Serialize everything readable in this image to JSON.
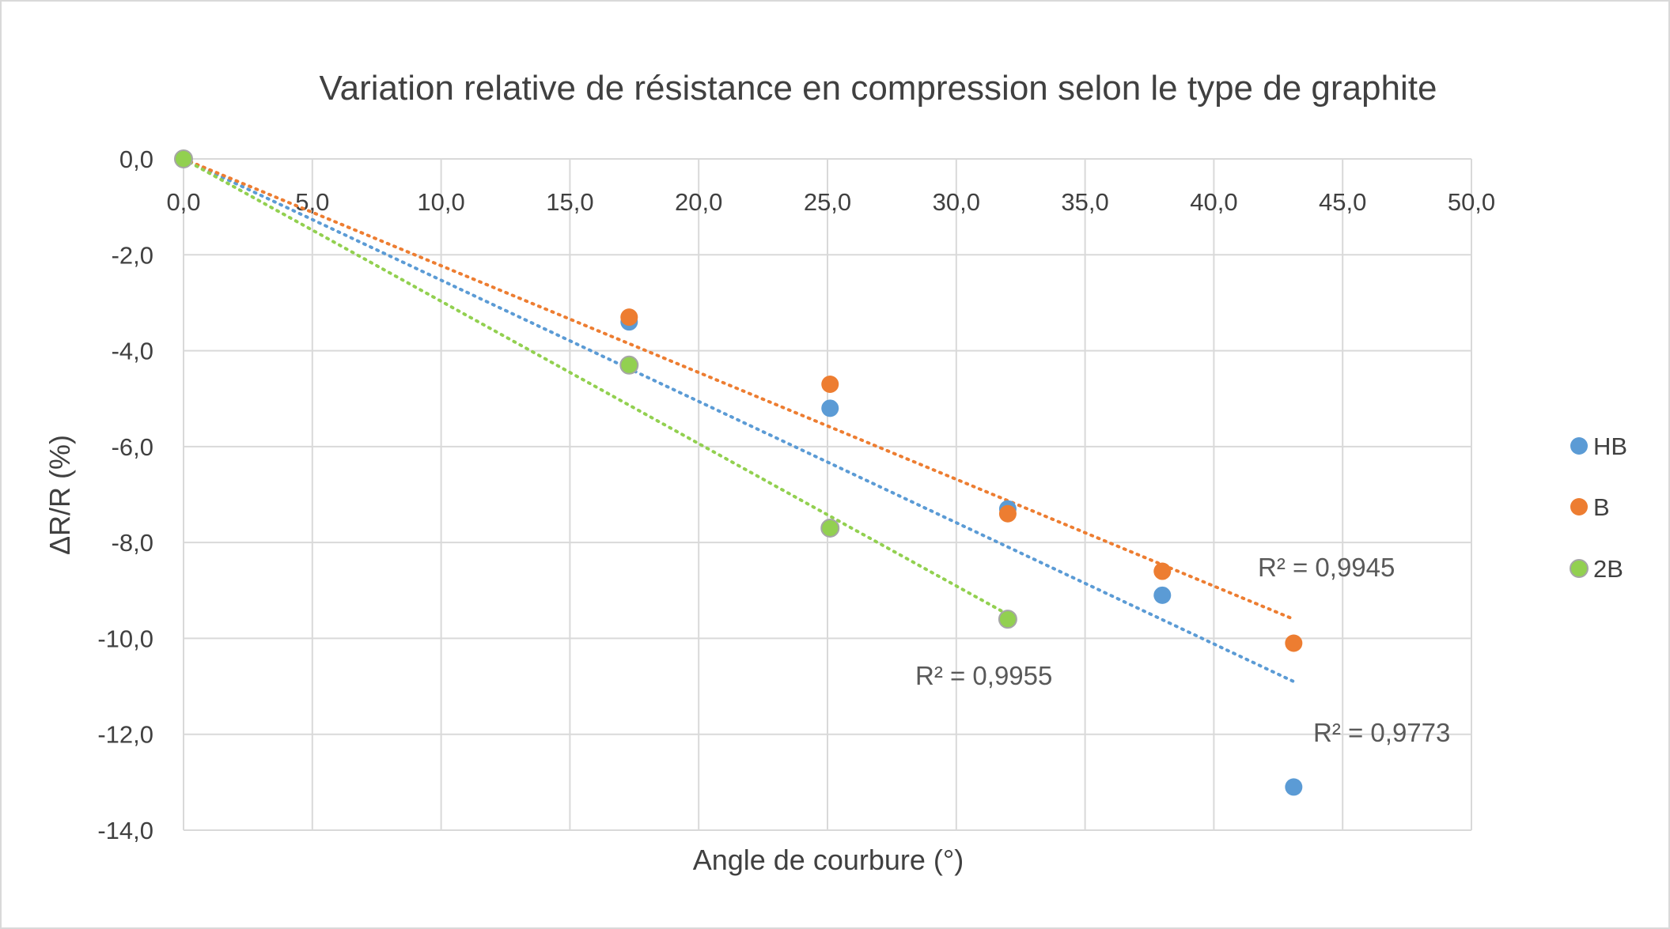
{
  "chart_data": {
    "type": "scatter",
    "title": "Variation relative de résistance en compression selon le type de graphite",
    "xlabel": "Angle de courbure (°)",
    "ylabel": "ΔR/R (%)",
    "xlim": [
      0,
      50
    ],
    "ylim": [
      -14,
      0
    ],
    "x_ticks": [
      "0,0",
      "5,0",
      "10,0",
      "15,0",
      "20,0",
      "25,0",
      "30,0",
      "35,0",
      "40,0",
      "45,0",
      "50,0"
    ],
    "y_ticks": [
      "0,0",
      "-2,0",
      "-4,0",
      "-6,0",
      "-8,0",
      "-10,0",
      "-12,0",
      "-14,0"
    ],
    "grid": true,
    "legend_position": "right",
    "series": [
      {
        "name": "HB",
        "color": "#5B9BD5",
        "points": [
          [
            0,
            0
          ],
          [
            17.3,
            -3.4
          ],
          [
            25.1,
            -5.2
          ],
          [
            32.0,
            -7.3
          ],
          [
            38.0,
            -9.1
          ],
          [
            43.1,
            -13.1
          ]
        ],
        "trendline": {
          "type": "linear",
          "x_range": [
            0,
            43.1
          ],
          "y_range": [
            0,
            -10.9
          ]
        },
        "r2_label": "R² = 0,9773"
      },
      {
        "name": "B",
        "color": "#ED7D31",
        "points": [
          [
            0,
            0
          ],
          [
            17.3,
            -3.3
          ],
          [
            25.1,
            -4.7
          ],
          [
            32.0,
            -7.4
          ],
          [
            38.0,
            -8.6
          ],
          [
            43.1,
            -10.1
          ]
        ],
        "trendline": {
          "type": "linear",
          "x_range": [
            0,
            43.1
          ],
          "y_range": [
            0,
            -9.6
          ]
        },
        "r2_label": "R² = 0,9945"
      },
      {
        "name": "2B",
        "color": "#92D050",
        "points": [
          [
            0,
            0
          ],
          [
            17.3,
            -4.3
          ],
          [
            25.1,
            -7.7
          ],
          [
            32.0,
            -9.6
          ]
        ],
        "trendline": {
          "type": "linear",
          "x_range": [
            0,
            32.0
          ],
          "y_range": [
            0,
            -9.5
          ]
        },
        "r2_label": "R² = 0,9955"
      }
    ]
  }
}
